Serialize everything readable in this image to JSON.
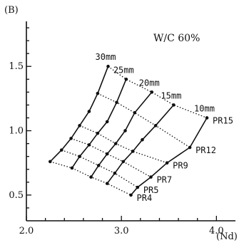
{
  "chart_data": {
    "type": "line",
    "panel_label": "(B)",
    "annotation": "W/C 60%",
    "xlabel": "(Nd)",
    "xlim": [
      2.0,
      4.2
    ],
    "ylim": [
      0.3,
      1.85
    ],
    "x_ticks": [
      "2.0",
      "3.0",
      "4.0"
    ],
    "y_ticks": [
      "0.5",
      "1.0",
      "1.5"
    ],
    "thickness_series": [
      {
        "name": "30mm",
        "points": [
          [
            2.25,
            0.76
          ],
          [
            2.37,
            0.85
          ],
          [
            2.47,
            0.94
          ],
          [
            2.56,
            1.04
          ],
          [
            2.66,
            1.15
          ],
          [
            2.75,
            1.29
          ],
          [
            2.86,
            1.5
          ]
        ]
      },
      {
        "name": "25mm",
        "points": [
          [
            2.48,
            0.71
          ],
          [
            2.56,
            0.8
          ],
          [
            2.66,
            0.89
          ],
          [
            2.75,
            0.98
          ],
          [
            2.85,
            1.07
          ],
          [
            2.95,
            1.22
          ],
          [
            3.05,
            1.4
          ]
        ]
      },
      {
        "name": "20mm",
        "points": [
          [
            2.68,
            0.64
          ],
          [
            2.76,
            0.73
          ],
          [
            2.85,
            0.82
          ],
          [
            2.94,
            0.9
          ],
          [
            3.04,
            1.0
          ],
          [
            3.14,
            1.14
          ],
          [
            3.32,
            1.3
          ]
        ]
      },
      {
        "name": "15mm",
        "points": [
          [
            2.85,
            0.59
          ],
          [
            2.93,
            0.67
          ],
          [
            3.02,
            0.76
          ],
          [
            3.12,
            0.84
          ],
          [
            3.22,
            0.93
          ],
          [
            3.36,
            1.04
          ],
          [
            3.55,
            1.2
          ]
        ]
      },
      {
        "name": "10mm",
        "points": [
          [
            3.1,
            0.5
          ],
          [
            3.17,
            0.56
          ],
          [
            3.31,
            0.64
          ],
          [
            3.48,
            0.75
          ],
          [
            3.72,
            0.87
          ],
          [
            3.9,
            1.1
          ]
        ]
      }
    ],
    "pr_series": [
      {
        "name": "PR15",
        "points": [
          [
            2.86,
            1.5
          ],
          [
            3.05,
            1.4
          ],
          [
            3.32,
            1.3
          ],
          [
            3.55,
            1.2
          ],
          [
            3.9,
            1.1
          ]
        ]
      },
      {
        "name": "PR12",
        "points": [
          [
            2.75,
            1.29
          ],
          [
            2.95,
            1.22
          ],
          [
            3.14,
            1.14
          ],
          [
            3.36,
            1.04
          ],
          [
            3.72,
            0.87
          ]
        ]
      },
      {
        "name": "PR9",
        "points": [
          [
            2.56,
            1.04
          ],
          [
            2.75,
            0.98
          ],
          [
            2.94,
            0.9
          ],
          [
            3.12,
            0.84
          ],
          [
            3.48,
            0.75
          ]
        ]
      },
      {
        "name": "PR7",
        "points": [
          [
            2.47,
            0.94
          ],
          [
            2.66,
            0.89
          ],
          [
            2.85,
            0.82
          ],
          [
            3.02,
            0.76
          ],
          [
            3.31,
            0.64
          ]
        ]
      },
      {
        "name": "PR5",
        "points": [
          [
            2.37,
            0.85
          ],
          [
            2.56,
            0.8
          ],
          [
            2.76,
            0.73
          ],
          [
            2.93,
            0.67
          ],
          [
            3.17,
            0.56
          ]
        ]
      },
      {
        "name": "PR4",
        "points": [
          [
            2.25,
            0.76
          ],
          [
            2.48,
            0.71
          ],
          [
            2.68,
            0.64
          ],
          [
            2.85,
            0.59
          ],
          [
            3.1,
            0.5
          ]
        ]
      }
    ]
  }
}
